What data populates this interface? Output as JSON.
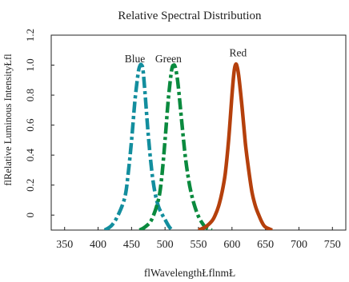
{
  "chart_data": {
    "type": "line",
    "title": "Relative Spectral Distribution",
    "xlabel": "flWavelengthŁflnmŁ",
    "ylabel": "flRelative Luminous IntensityŁfl",
    "xlim": [
      330,
      770
    ],
    "ylim": [
      -0.1,
      1.2
    ],
    "x_ticks": [
      350,
      400,
      450,
      500,
      550,
      600,
      650,
      700,
      750
    ],
    "y_ticks": [
      0,
      0.2,
      0.4,
      0.6,
      0.8,
      1.0,
      1.2
    ],
    "y_tick_labels": [
      "0",
      "0.2",
      "0.4",
      "0.6",
      "0.8",
      "1.0",
      "1.2"
    ],
    "grid": false,
    "series": [
      {
        "name": "Blue",
        "color": "#138e9e",
        "line_style": "dash-dot",
        "x": [
          410,
          420,
          430,
          440,
          445,
          450,
          455,
          460,
          463,
          465,
          467,
          470,
          475,
          480,
          485,
          490,
          495,
          500,
          505,
          510
        ],
        "y": [
          -0.1,
          -0.07,
          0.0,
          0.12,
          0.28,
          0.5,
          0.76,
          0.95,
          1.0,
          1.0,
          0.97,
          0.82,
          0.53,
          0.3,
          0.15,
          0.06,
          0.01,
          -0.03,
          -0.07,
          -0.1
        ]
      },
      {
        "name": "Green",
        "color": "#0a8a3e",
        "line_style": "dash-dot",
        "x": [
          462,
          470,
          480,
          490,
          495,
          500,
          505,
          510,
          513,
          515,
          517,
          520,
          525,
          530,
          535,
          540,
          545,
          550,
          555,
          560,
          565,
          570
        ],
        "y": [
          -0.1,
          -0.08,
          -0.03,
          0.1,
          0.25,
          0.5,
          0.78,
          0.97,
          1.0,
          0.99,
          0.95,
          0.85,
          0.62,
          0.4,
          0.24,
          0.13,
          0.05,
          -0.01,
          -0.05,
          -0.08,
          -0.09,
          -0.1
        ]
      },
      {
        "name": "Red",
        "color": "#b5400c",
        "line_style": "solid",
        "x": [
          550,
          560,
          570,
          575,
          580,
          585,
          590,
          595,
          600,
          603,
          605,
          607,
          610,
          615,
          620,
          625,
          630,
          635,
          640,
          645,
          650,
          660
        ],
        "y": [
          -0.1,
          -0.08,
          -0.04,
          0.0,
          0.06,
          0.15,
          0.28,
          0.5,
          0.8,
          0.95,
          1.0,
          1.0,
          0.93,
          0.72,
          0.48,
          0.3,
          0.15,
          0.06,
          0.0,
          -0.05,
          -0.08,
          -0.1
        ]
      }
    ],
    "annotations": [
      {
        "text": "Blue",
        "x": 455,
        "y": 1.02
      },
      {
        "text": "Green",
        "x": 505,
        "y": 1.02
      },
      {
        "text": "Red",
        "x": 609,
        "y": 1.06
      }
    ]
  }
}
